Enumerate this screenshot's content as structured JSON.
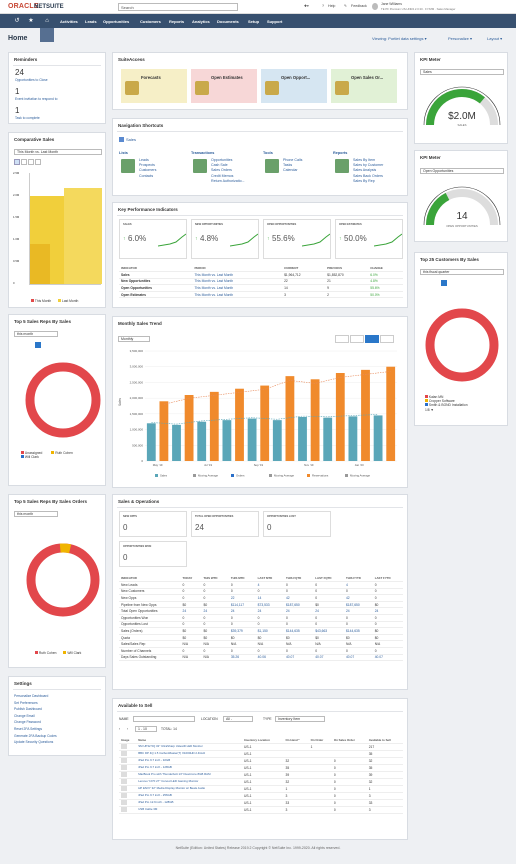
{
  "topbar": {
    "logo_oracle": "ORACLE",
    "logo_netsuite": "NETSUITE",
    "search_placeholder": "Search",
    "help": "Help",
    "feedback": "Feedback",
    "user_name": "Jane Williams",
    "user_company": "TE PF Premium US-UNR4.2.0.30 · FY/MM · Sales Manager"
  },
  "nav": [
    "Activities",
    "Leads",
    "Opportunities",
    "Customers",
    "Reports",
    "Analytics",
    "Documents",
    "Setup",
    "Support"
  ],
  "page": {
    "title": "Home",
    "viewing": "Viewing: Portlet data settings ▾",
    "personalize": "Personalize ▾",
    "layout": "Layout ▾"
  },
  "reminders": {
    "title": "Reminders",
    "items": [
      {
        "count": "24",
        "label": "Opportunities to Close"
      },
      {
        "count": "1",
        "label": "Event invitation to respond to"
      },
      {
        "count": "1",
        "label": "Task to complete"
      }
    ]
  },
  "suiteaccess": {
    "title": "SuiteAccess",
    "tiles": [
      "Forecasts",
      "Open Estimates",
      "Open Opport...",
      "Open Sales Or..."
    ],
    "colors": [
      "#f6efc7",
      "#f7d7d7",
      "#d6e6f2",
      "#e1f1d6"
    ]
  },
  "kpi_meter1": {
    "title": "KPI Meter",
    "select": "Sales",
    "value": "$2.0M",
    "sublabel": "SALES",
    "fraction": 0.72
  },
  "kpi_meter2": {
    "title": "KPI Meter",
    "select": "Open Opportunities",
    "value": "14",
    "sublabel": "OPEN OPPORTUNITIES",
    "fraction": 0.35
  },
  "comp_sales": {
    "title": "Comparative Sales",
    "select": "This Month vs. Last Month",
    "legend": [
      "This Month",
      "Last Month"
    ],
    "ticks": [
      "2.5M",
      "2.0M",
      "1.5M",
      "1.0M",
      "0.5M",
      "0"
    ]
  },
  "nav_shortcuts": {
    "title": "Navigation Shortcuts",
    "tab": "Sales",
    "groups": [
      {
        "h": "Lists",
        "items": [
          "Leads",
          "Prospects",
          "Customers",
          "Contacts"
        ]
      },
      {
        "h": "Transactions",
        "items": [
          "Opportunities",
          "Cash Sale",
          "Sales Orders",
          "Credit Memos",
          "Return Authorizatio..."
        ]
      },
      {
        "h": "Tools",
        "items": [
          "Phone Calls",
          "Tasks",
          "Calendar"
        ]
      },
      {
        "h": "Reports",
        "items": [
          "Sales By Item",
          "Sales by Customer",
          "Sales Analysis",
          "Sales Back Orders",
          "Sales By Rep"
        ]
      }
    ]
  },
  "kpi": {
    "title": "Key Performance Indicators",
    "boxes": [
      {
        "label": "SALES",
        "value": "6.0%"
      },
      {
        "label": "NEW OPPORTUNITIES",
        "value": "4.8%"
      },
      {
        "label": "OPEN OPPORTUNITIES",
        "value": "55.6%"
      },
      {
        "label": "OPEN ESTIMATES",
        "value": "50.0%"
      }
    ],
    "headers": [
      "INDICATOR",
      "PERIOD",
      "CURRENT",
      "PREVIOUS",
      "CHANGE"
    ],
    "rows": [
      [
        "Sales",
        "This Month vs. Last Month",
        "$1,964,712",
        "$1,852,870",
        "6.0%"
      ],
      [
        "New Opportunities",
        "This Month vs. Last Month",
        "22",
        "21",
        "4.8%"
      ],
      [
        "Open Opportunities",
        "This Month vs. Last Month",
        "14",
        "9",
        "55.6%"
      ],
      [
        "Open Estimates",
        "This Month vs. Last Month",
        "3",
        "2",
        "50.0%"
      ]
    ]
  },
  "top5_sales": {
    "title": "Top 5 Sales Reps By Sales",
    "select": "this month",
    "legend": [
      "Unassigned",
      "Ruth Cohen",
      "Will Clark"
    ]
  },
  "monthly_trend": {
    "title": "Monthly Sales Trend",
    "select": "Monthly",
    "ticks": [
      "3,500,000",
      "3,000,000",
      "2,500,000",
      "2,000,000",
      "1,500,000",
      "1,000,000",
      "500,000",
      "0"
    ],
    "xlabels": [
      "May '19",
      "Jun '19",
      "Jul '19",
      "Aug '19",
      "Sep '19",
      "Oct '19",
      "Nov '19",
      "Dec '19",
      "Jan '20",
      "Feb '20"
    ],
    "ylabel": "Sales",
    "legend": [
      "Sales",
      "Moving Average",
      "Orders",
      "Moving Average",
      "Reservations",
      "Moving Average"
    ]
  },
  "chart_data": {
    "type": "bar",
    "title": "Monthly Sales Trend",
    "ylim": [
      0,
      3500000
    ],
    "series": [
      {
        "name": "Sales",
        "values": [
          1200000,
          1150000,
          1250000,
          1300000,
          1350000,
          1300000,
          1400000,
          1380000,
          1420000,
          1450000
        ]
      },
      {
        "name": "Reservations",
        "values": [
          1900000,
          2100000,
          2200000,
          2300000,
          2400000,
          2700000,
          2600000,
          2800000,
          2900000,
          3000000
        ]
      }
    ]
  },
  "top25": {
    "title": "Top 25 Customers By Sales",
    "select": "this fiscal quarter",
    "legend": [
      "Kalan MN",
      "Cropper Software",
      "Smith & BOND Installation"
    ],
    "page": "1/8 ▼"
  },
  "top5_orders": {
    "title": "Top 5 Sales Reps By Sales Orders",
    "select": "this month",
    "legend": [
      "Ruth Cohen",
      "Will Clark"
    ]
  },
  "sales_ops": {
    "title": "Sales & Operations",
    "boxes": [
      {
        "label": "NEW OPPS",
        "value": "0"
      },
      {
        "label": "TOTAL OPEN OPPORTUNITIES",
        "value": "24"
      },
      {
        "label": "OPPORTUNITIES LOST",
        "value": "0"
      },
      {
        "label": "OPPORTUNITIES WON",
        "value": "0"
      }
    ],
    "headers": [
      "INDICATOR",
      "TODAY",
      "THIS WTD",
      "THIS MTD",
      "LAST MTD",
      "THIS FQTD",
      "LAST FQTD",
      "THIS FYTD",
      "LAST FYTD"
    ],
    "rows": [
      [
        "New Leads",
        "0",
        "0",
        "0",
        "4",
        "0",
        "0",
        "4",
        "0"
      ],
      [
        "New Customers",
        "0",
        "0",
        "0",
        "0",
        "0",
        "0",
        "0",
        "0"
      ],
      [
        "New Opps",
        "0",
        "0",
        "22",
        "14",
        "42",
        "0",
        "42",
        "0"
      ],
      [
        "Pipeline from New Opps",
        "$0",
        "$0",
        "$114,117",
        "$73,533",
        "$187,650",
        "$0",
        "$187,650",
        "$0"
      ],
      [
        "Total Open Opportunities",
        "24",
        "24",
        "24",
        "24",
        "24",
        "24",
        "24",
        "24"
      ],
      [
        "Opportunities Won",
        "0",
        "0",
        "0",
        "0",
        "0",
        "0",
        "0",
        "0"
      ],
      [
        "Opportunities Lost",
        "0",
        "0",
        "0",
        "0",
        "0",
        "0",
        "0",
        "0"
      ],
      [
        "Sales (Orders)",
        "$0",
        "$0",
        "$39,379",
        "$1,150",
        "$144,635",
        "$43,663",
        "$144,635",
        "$0"
      ],
      [
        "Quota",
        "$0",
        "$0",
        "$0",
        "$0",
        "$0",
        "$0",
        "$0",
        "$0"
      ],
      [
        "Sales/Sales Rep",
        "N/A",
        "N/A",
        "N/A",
        "N/A",
        "N/A",
        "N/A",
        "N/A",
        "N/A"
      ],
      [
        "Number of Channels",
        "0",
        "0",
        "0",
        "0",
        "0",
        "0",
        "0",
        "0"
      ],
      [
        "Days Sales Outstanding",
        "N/A",
        "N/A",
        "35.26",
        "40.06",
        "40.07",
        "40.07",
        "40.07",
        "40.07"
      ]
    ]
  },
  "settings": {
    "title": "Settings",
    "items": [
      "Personalize Dashboard",
      "Set Preferences",
      "Publish Dashboard",
      "Change Email",
      "Change Password",
      "Reset 2FA Settings",
      "Generate 2FA Backup Codes",
      "Update Security Questions"
    ]
  },
  "available": {
    "title": "Available to Sell",
    "name_label": "NAME",
    "location_label": "LOCATION",
    "location_value": "All -",
    "type_label": "TYPE",
    "type_value": "Inventory Item",
    "range": "1 - 10",
    "total": "TOTAL: 14",
    "headers": [
      "Image",
      "Name",
      "Inventory Location",
      "On Hand *",
      "On Order",
      "On Sales Order",
      "Available to Sell"
    ],
    "rows": [
      [
        "SM UP32 5Q 32\" UltraSharp UHestD LED Monitor",
        "US-1",
        "",
        "1",
        "",
        "217"
      ],
      [
        "BBC DP 4Q 1.5 CarbonMaster(T) X1000HD 2.4GHz",
        "US-1",
        "",
        "",
        "",
        "35"
      ],
      [
        "iPad Pro 9.7 inch - 32GB",
        "US-1",
        "32",
        "",
        "0",
        "32"
      ],
      [
        "iPad Pro 9.7 inch - 128GB",
        "US-1",
        "35",
        "",
        "0",
        "35"
      ],
      [
        "MacBook Pro with Thunderbolt 13\" Dual-Core 8GB RAM",
        "US-1",
        "39",
        "",
        "0",
        "39"
      ],
      [
        "Lenovo Y27F 27\" Curved LED Gaming Monitor",
        "US-1",
        "32",
        "",
        "0",
        "32"
      ],
      [
        "HP ENVY 32\" Media Display Monitor w/ Beats Audio",
        "US-1",
        "1",
        "",
        "0",
        "1"
      ],
      [
        "iPad Pro 9.7 inch - 256GB",
        "US-1",
        "3",
        "",
        "0",
        "3"
      ],
      [
        "iPad Pro 12.9 inch - 128GB",
        "US-1",
        "33",
        "",
        "0",
        "33"
      ],
      [
        "USB Cable 3M",
        "US-1",
        "3",
        "",
        "0",
        "3"
      ]
    ]
  },
  "footer": "NetSuite (Edition: United States) Release 2019.2 Copyright © NetSuite Inc. 1999-2020. All rights reserved."
}
